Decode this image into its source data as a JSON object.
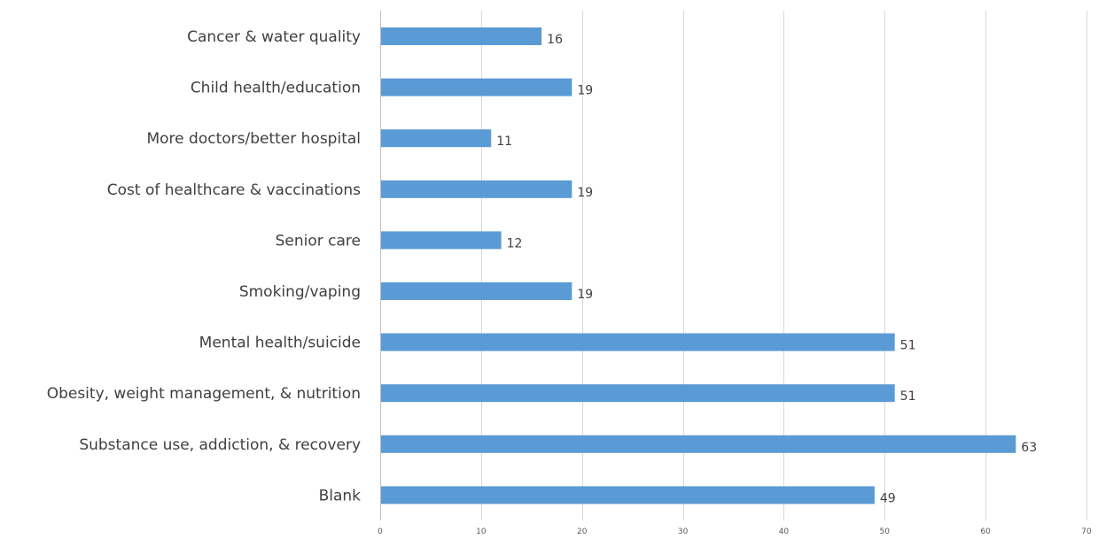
{
  "chart_data": {
    "type": "bar",
    "orientation": "horizontal",
    "categories": [
      "Cancer & water quality",
      "Child health/education",
      "More doctors/better hospital",
      "Cost of healthcare & vaccinations",
      "Senior care",
      "Smoking/vaping",
      "Mental health/suicide",
      "Obesity, weight management, & nutrition",
      "Substance use, addiction, & recovery",
      "Blank"
    ],
    "values": [
      16,
      19,
      11,
      19,
      12,
      19,
      51,
      51,
      63,
      49
    ],
    "xlim": [
      0,
      70
    ],
    "xticks": [
      0,
      10,
      20,
      30,
      40,
      50,
      60,
      70
    ],
    "grid": true,
    "data_labels": true,
    "bar_color": "#5b9bd5"
  }
}
